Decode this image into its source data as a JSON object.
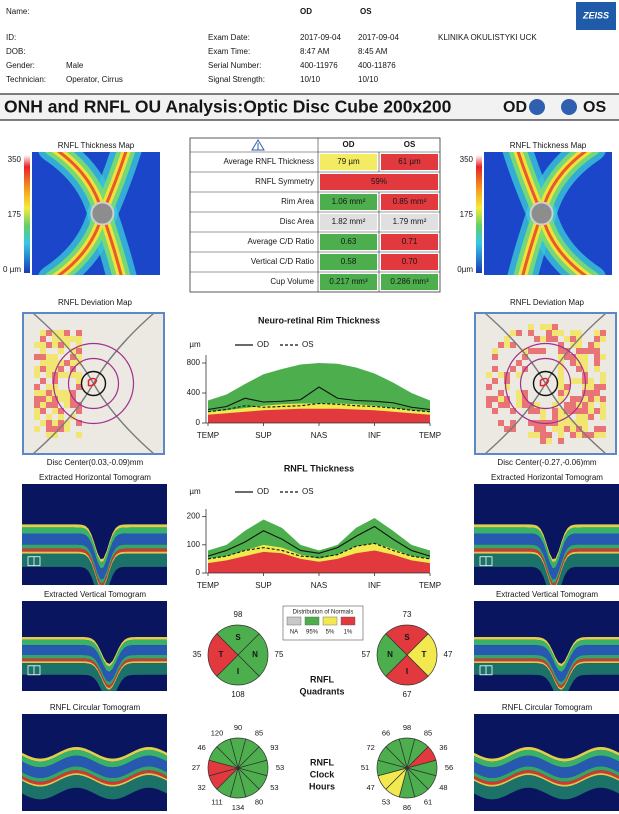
{
  "header": {
    "name_label": "Name:",
    "id_label": "ID:",
    "dob_label": "DOB:",
    "gender": {
      "label": "Gender:",
      "value": "Male"
    },
    "technician": {
      "label": "Technician:",
      "value": "Operator, Cirrus"
    },
    "eyes": [
      "OD",
      "OS"
    ],
    "exam_rows": [
      {
        "label": "Exam Date:",
        "od": "2017-09-04",
        "os": "2017-09-04"
      },
      {
        "label": "Exam Time:",
        "od": "8:47 AM",
        "os": "8:45 AM"
      },
      {
        "label": "Serial Number:",
        "od": "400-11976",
        "os": "400-11876"
      },
      {
        "label": "Signal Strength:",
        "od": "10/10",
        "os": "10/10"
      }
    ],
    "clinic": "KLINIKA OKULISTYKI UCK",
    "logo": "ZEISS"
  },
  "title": {
    "text": "ONH and RNFL OU Analysis:Optic Disc Cube 200x200",
    "od": "OD",
    "os": "OS",
    "marker_color": "#2f5fae"
  },
  "panels": [
    {
      "thickness_title": "RNFL Thickness Map",
      "scale": [
        "350",
        "175",
        "0 µm"
      ],
      "deviation_title": "RNFL Deviation Map",
      "disc_center": "Disc Center(0.03,-0.09)mm",
      "horizontal_title": "Extracted Horizontal Tomogram",
      "vertical_title": "Extracted Vertical Tomogram",
      "circular_title": "RNFL Circular Tomogram"
    },
    {
      "thickness_title": "RNFL Thickness Map",
      "scale": [
        "350",
        "175",
        "0µm"
      ],
      "deviation_title": "RNFL Deviation Map",
      "disc_center": "Disc Center(-0.27,-0.06)mm",
      "horizontal_title": "Extracted Horizontal Tomogram",
      "vertical_title": "Extracted Vertical Tomogram",
      "circular_title": "RNFL Circular Tomogram"
    }
  ],
  "table": {
    "header": [
      "OD",
      "OS"
    ],
    "rows": [
      {
        "label": "Average RNFL Thickness",
        "od": "79 µm",
        "os": "61 µm",
        "od_color": "#f3ec62",
        "os_color": "#e2393f"
      },
      {
        "label": "RNFL Symmetry",
        "both": "59%",
        "color": "#e2393f"
      },
      {
        "label": "Rim Area",
        "od": "1.06 mm²",
        "os": "0.85 mm²",
        "od_color": "#4cae4c",
        "os_color": "#e2393f"
      },
      {
        "label": "Disc Area",
        "od": "1.82 mm²",
        "os": "1.79 mm²",
        "od_color": "#e0e0e0",
        "os_color": "#e0e0e0"
      },
      {
        "label": "Average C/D Ratio",
        "od": "0.63",
        "os": "0.71",
        "od_color": "#4cae4c",
        "os_color": "#e2393f"
      },
      {
        "label": "Vertical C/D Ratio",
        "od": "0.58",
        "os": "0.70",
        "od_color": "#4cae4c",
        "os_color": "#e2393f"
      },
      {
        "label": "Cup Volume",
        "od": "0.217 mm³",
        "os": "0.286 mm³",
        "od_color": "#4cae4c",
        "os_color": "#4cae4c"
      }
    ]
  },
  "chart_data": [
    {
      "type": "line",
      "title": "Neuro-retinal Rim Thickness",
      "y_label": "µm",
      "x": [
        0,
        1,
        2,
        3,
        4,
        5,
        6,
        7,
        8,
        9,
        10,
        11,
        12
      ],
      "xlim": [
        0,
        12
      ],
      "xticks": [
        {
          "value": 0,
          "label": "TEMP"
        },
        {
          "value": 3,
          "label": "SUP"
        },
        {
          "value": 6,
          "label": "NAS"
        },
        {
          "value": 9,
          "label": "INF"
        },
        {
          "value": 12,
          "label": "TEMP"
        }
      ],
      "ylim": [
        0,
        880
      ],
      "yticks": [
        0,
        400,
        800
      ],
      "bands": [
        {
          "color": "#4cae4c",
          "values": [
            300,
            380,
            520,
            650,
            720,
            780,
            800,
            790,
            740,
            660,
            540,
            400,
            300
          ]
        },
        {
          "color": "#f2e94e",
          "values": [
            150,
            170,
            200,
            230,
            250,
            260,
            260,
            260,
            250,
            230,
            200,
            170,
            150
          ]
        },
        {
          "color": "#e2393f",
          "values": [
            110,
            130,
            150,
            170,
            180,
            190,
            190,
            190,
            180,
            170,
            150,
            130,
            110
          ]
        }
      ],
      "series": [
        {
          "name": "OD",
          "color": "#111111",
          "style": "solid",
          "values": [
            180,
            220,
            330,
            280,
            290,
            310,
            480,
            330,
            300,
            290,
            270,
            210,
            180
          ]
        },
        {
          "name": "OS",
          "color": "#111111",
          "style": "dashed",
          "values": [
            150,
            180,
            230,
            210,
            220,
            230,
            260,
            250,
            230,
            220,
            200,
            170,
            150
          ]
        }
      ]
    },
    {
      "type": "line",
      "title": "RNFL Thickness",
      "y_label": "µm",
      "x": [
        0,
        1,
        2,
        3,
        4,
        5,
        6,
        7,
        8,
        9,
        10,
        11,
        12
      ],
      "xlim": [
        0,
        12
      ],
      "xticks": [
        {
          "value": 0,
          "label": "TEMP"
        },
        {
          "value": 3,
          "label": "SUP"
        },
        {
          "value": 6,
          "label": "NAS"
        },
        {
          "value": 9,
          "label": "INF"
        },
        {
          "value": 12,
          "label": "TEMP"
        }
      ],
      "ylim": [
        0,
        220
      ],
      "yticks": [
        0,
        100,
        200
      ],
      "bands": [
        {
          "color": "#4cae4c",
          "values": [
            80,
            100,
            150,
            190,
            160,
            100,
            80,
            100,
            160,
            195,
            150,
            100,
            80
          ]
        },
        {
          "color": "#f2e94e",
          "values": [
            50,
            60,
            80,
            100,
            90,
            65,
            50,
            65,
            95,
            105,
            85,
            60,
            50
          ]
        },
        {
          "color": "#e2393f",
          "values": [
            35,
            45,
            60,
            75,
            70,
            50,
            40,
            50,
            70,
            80,
            65,
            45,
            35
          ]
        }
      ],
      "series": [
        {
          "name": "OD",
          "color": "#111111",
          "style": "solid",
          "values": [
            60,
            80,
            110,
            150,
            120,
            80,
            70,
            90,
            130,
            165,
            120,
            80,
            60
          ]
        },
        {
          "name": "OS",
          "color": "#111111",
          "style": "dashed",
          "values": [
            50,
            60,
            80,
            90,
            80,
            60,
            55,
            65,
            95,
            105,
            80,
            60,
            50
          ]
        }
      ]
    }
  ],
  "normals": {
    "title": "Distribution of Normals",
    "items": [
      {
        "label": "NA",
        "color": "#c8c8c8"
      },
      {
        "label": "95%",
        "color": "#4cae4c"
      },
      {
        "label": "5%",
        "color": "#f2e94e"
      },
      {
        "label": "1%",
        "color": "#e2393f"
      }
    ]
  },
  "quadrants": {
    "title": [
      "RNFL",
      "Quadrants"
    ],
    "od": [
      {
        "letter": "S",
        "value": 98,
        "color": "#4cae4c"
      },
      {
        "letter": "N",
        "value": 75,
        "color": "#4cae4c"
      },
      {
        "letter": "I",
        "value": 108,
        "color": "#4cae4c"
      },
      {
        "letter": "T",
        "value": 35,
        "color": "#e2393f"
      }
    ],
    "os": [
      {
        "letter": "S",
        "value": 73,
        "color": "#e2393f"
      },
      {
        "letter": "T",
        "value": 47,
        "color": "#f2e94e"
      },
      {
        "letter": "I",
        "value": 67,
        "color": "#e2393f"
      },
      {
        "letter": "N",
        "value": 57,
        "color": "#4cae4c"
      }
    ]
  },
  "clock_hours": {
    "title": [
      "RNFL",
      "Clock",
      "Hours"
    ],
    "od": {
      "values": [
        90,
        85,
        93,
        53,
        53,
        80,
        134,
        111,
        32,
        27,
        46,
        120
      ],
      "colors": [
        "#4cae4c",
        "#4cae4c",
        "#4cae4c",
        "#4cae4c",
        "#4cae4c",
        "#4cae4c",
        "#4cae4c",
        "#4cae4c",
        "#e2393f",
        "#e2393f",
        "#4cae4c",
        "#4cae4c"
      ]
    },
    "os": {
      "values": [
        98,
        85,
        36,
        56,
        48,
        61,
        86,
        53,
        47,
        51,
        72,
        66
      ],
      "colors": [
        "#4cae4c",
        "#4cae4c",
        "#e2393f",
        "#4cae4c",
        "#4cae4c",
        "#4cae4c",
        "#4cae4c",
        "#f2e94e",
        "#f2e94e",
        "#4cae4c",
        "#4cae4c",
        "#4cae4c"
      ]
    }
  }
}
